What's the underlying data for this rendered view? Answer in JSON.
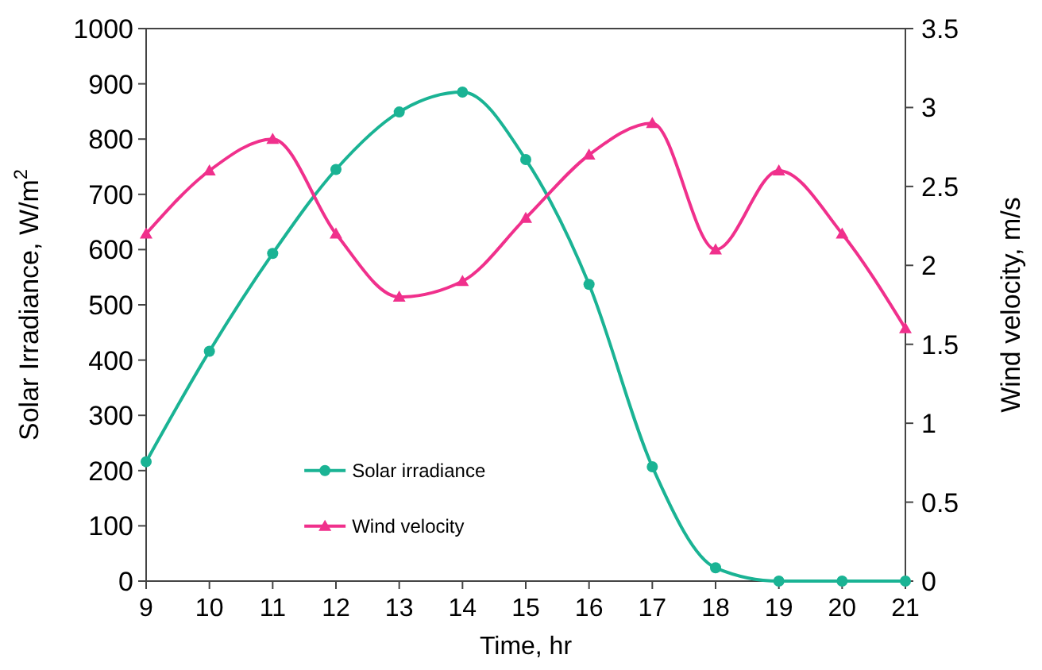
{
  "chart_data": {
    "type": "line",
    "xlabel": "Time, hr",
    "ylabel": "Solar Irradiance, W/m$^{2}$",
    "y2label": "Wind velocity, m/s",
    "x": [
      9,
      10,
      11,
      12,
      13,
      14,
      15,
      16,
      17,
      18,
      19,
      20,
      21
    ],
    "series": [
      {
        "name": "Solar irradiance",
        "color": "#1ab394",
        "marker": "circle",
        "values": [
          216,
          416,
          593,
          745,
          849,
          885,
          763,
          537,
          207,
          24,
          0,
          0,
          0
        ]
      },
      {
        "name": "Wind velocity",
        "color": "#f0308c",
        "marker": "triangle",
        "axis": "y2",
        "values": [
          2.2,
          2.6,
          2.8,
          2.2,
          1.8,
          1.9,
          2.3,
          2.7,
          2.9,
          2.1,
          2.6,
          2.2,
          1.6
        ]
      }
    ],
    "xlim": [
      9,
      21
    ],
    "xticks": [
      9,
      10,
      11,
      12,
      13,
      14,
      15,
      16,
      17,
      18,
      19,
      20,
      21
    ],
    "ylim": [
      0,
      1000
    ],
    "yticks": [
      0,
      100,
      200,
      300,
      400,
      500,
      600,
      700,
      800,
      900,
      1000
    ],
    "y2lim": [
      0,
      3.5
    ],
    "y2ticks": [
      0,
      {
        "value": 0.5,
        "label": "0.5"
      },
      1,
      {
        "value": 1.5,
        "label": "1.5"
      },
      2,
      {
        "value": 2.5,
        "label": "2.5"
      },
      3,
      {
        "value": 3.5,
        "label": "3.5"
      }
    ],
    "legend": "bottom left",
    "grid": false,
    "line_style": "solid"
  }
}
